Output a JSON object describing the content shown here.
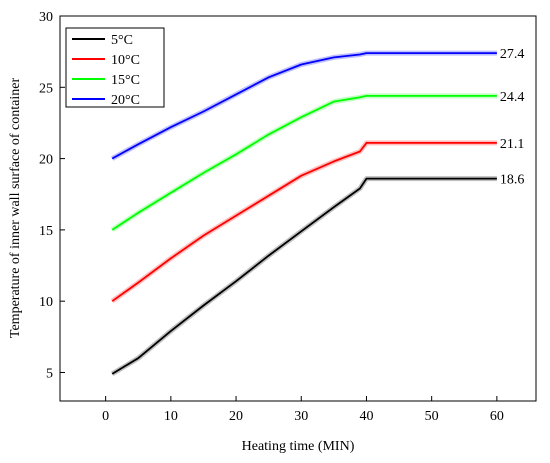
{
  "chart_data": {
    "type": "line",
    "title": "",
    "xlabel": "Heating time (MIN)",
    "ylabel": "Temperature of inner wall surface of container",
    "xlim": [
      -7,
      66
    ],
    "ylim": [
      3,
      30
    ],
    "xticks": [
      0,
      10,
      20,
      30,
      40,
      50,
      60
    ],
    "yticks": [
      5,
      10,
      15,
      20,
      25,
      30
    ],
    "legend_position": "top-left",
    "grid": false,
    "series": [
      {
        "name": "5°C",
        "color": "#000000",
        "end_label": "18.6",
        "x": [
          1,
          5,
          10,
          15,
          20,
          25,
          30,
          35,
          39,
          40,
          45,
          50,
          55,
          60
        ],
        "y": [
          4.9,
          6.0,
          7.9,
          9.7,
          11.4,
          13.2,
          14.9,
          16.6,
          17.9,
          18.6,
          18.6,
          18.6,
          18.6,
          18.6
        ]
      },
      {
        "name": "10°C",
        "color": "#ff0000",
        "end_label": "21.1",
        "x": [
          1,
          5,
          10,
          15,
          20,
          25,
          30,
          35,
          39,
          40,
          45,
          50,
          55,
          60
        ],
        "y": [
          10.0,
          11.3,
          13.0,
          14.6,
          16.0,
          17.4,
          18.8,
          19.8,
          20.5,
          21.1,
          21.1,
          21.1,
          21.1,
          21.1
        ]
      },
      {
        "name": "15°C",
        "color": "#00ff00",
        "end_label": "24.4",
        "x": [
          1,
          5,
          10,
          15,
          20,
          25,
          30,
          35,
          39,
          40,
          45,
          50,
          55,
          60
        ],
        "y": [
          15.0,
          16.2,
          17.6,
          19.0,
          20.3,
          21.7,
          22.9,
          24.0,
          24.3,
          24.4,
          24.4,
          24.4,
          24.4,
          24.4
        ]
      },
      {
        "name": "20°C",
        "color": "#0000ff",
        "end_label": "27.4",
        "x": [
          1,
          5,
          10,
          15,
          20,
          25,
          30,
          35,
          39,
          40,
          45,
          50,
          55,
          60
        ],
        "y": [
          20.0,
          21.0,
          22.2,
          23.3,
          24.5,
          25.7,
          26.6,
          27.1,
          27.3,
          27.4,
          27.4,
          27.4,
          27.4,
          27.4
        ]
      }
    ]
  }
}
